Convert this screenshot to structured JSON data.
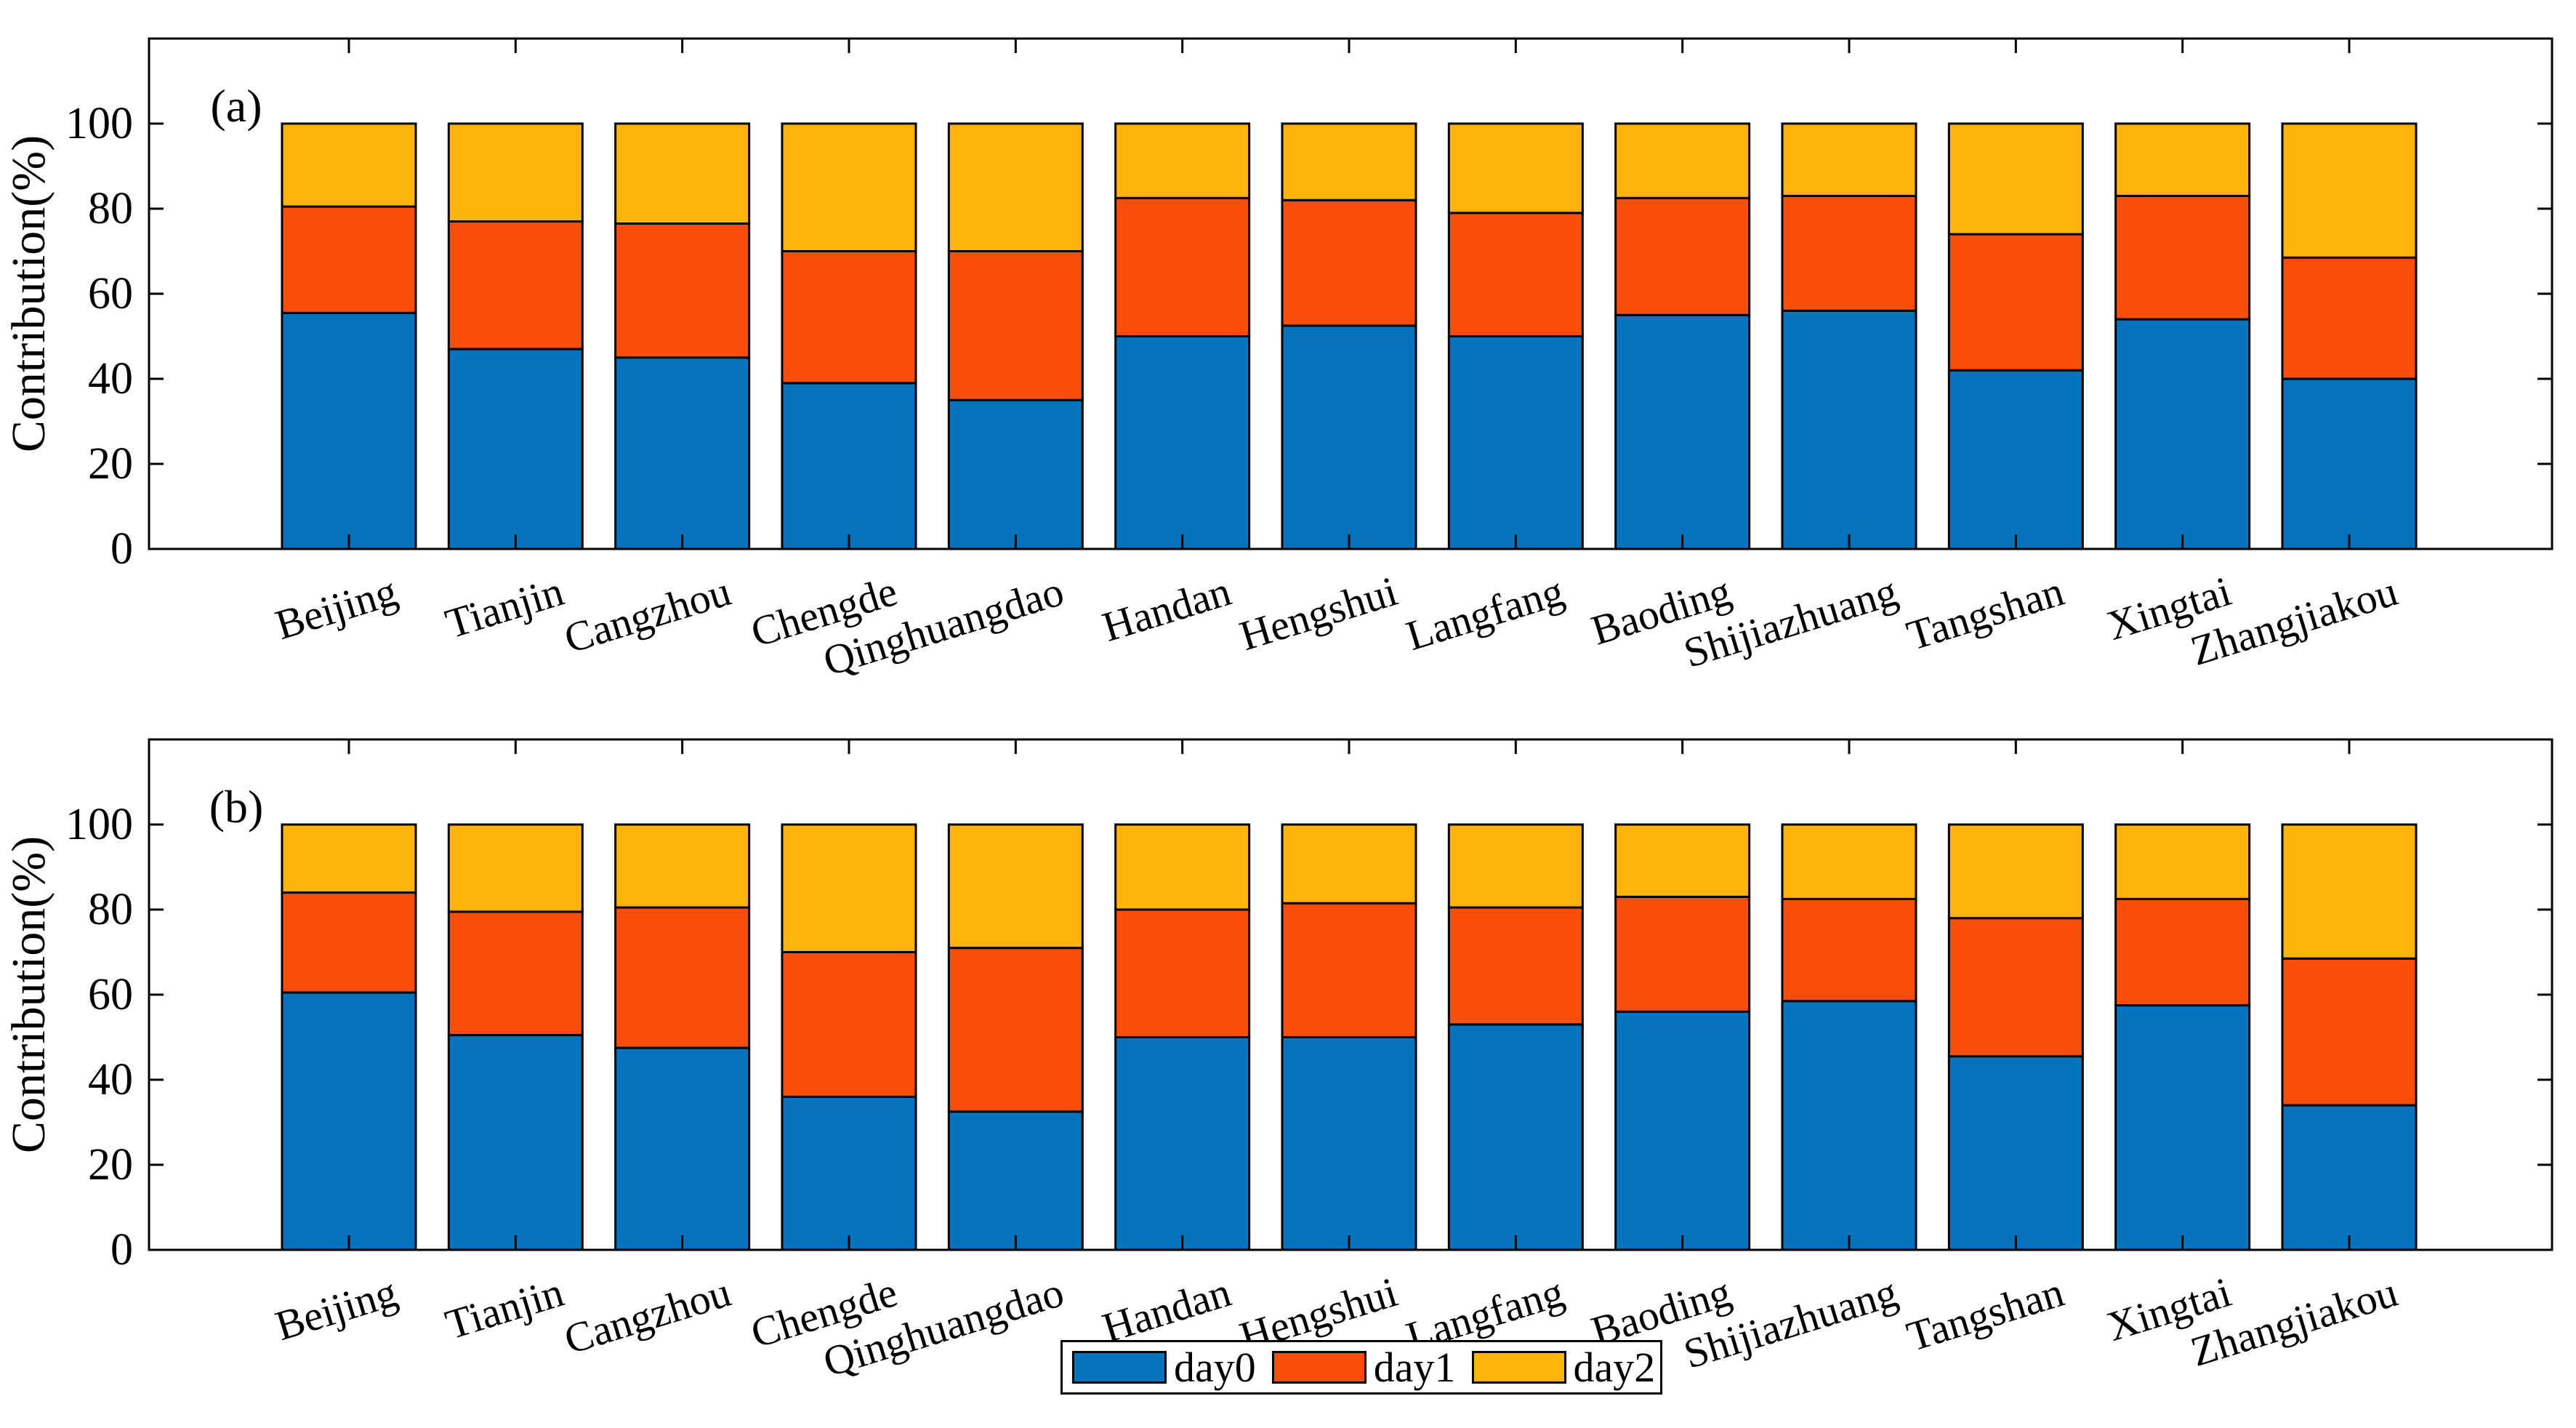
{
  "figure": {
    "panel_a_tag": "(a)",
    "panel_b_tag": "(b)",
    "ylabel": "Contribution(%)",
    "background_color": "#ffffff",
    "axis_color": "#000000",
    "legend": [
      {
        "label": "day0",
        "color": "#0673BE"
      },
      {
        "label": "day1",
        "color": "#F94E0B"
      },
      {
        "label": "day2",
        "color": "#FDB30C"
      }
    ]
  },
  "chart_data": [
    {
      "type": "bar",
      "stacked": true,
      "panel_label": "(a)",
      "title": "",
      "xlabel": "",
      "ylabel": "Contribution(%)",
      "ylim": [
        0,
        120
      ],
      "yticks": [
        0,
        20,
        40,
        60,
        80,
        100
      ],
      "grid": false,
      "legend_position": "below-figure",
      "categories": [
        "Beijing",
        "Tianjin",
        "Cangzhou",
        "Chengde",
        "Qinghuangdao",
        "Handan",
        "Hengshui",
        "Langfang",
        "Baoding",
        "Shijiazhuang",
        "Tangshan",
        "Xingtai",
        "Zhangjiakou"
      ],
      "series": [
        {
          "name": "day0",
          "color": "#0673BE",
          "values": [
            55.5,
            47,
            45,
            39,
            35,
            50,
            52.5,
            50,
            55,
            56,
            42,
            54,
            40
          ]
        },
        {
          "name": "day1",
          "color": "#F94E0B",
          "values": [
            25,
            30,
            31.5,
            31,
            35,
            32.5,
            29.5,
            29,
            27.5,
            27,
            32,
            29,
            28.5
          ]
        },
        {
          "name": "day2",
          "color": "#FDB30C",
          "values": [
            19.5,
            23,
            23.5,
            30,
            30,
            17.5,
            18,
            21,
            17.5,
            17,
            26,
            17,
            31.5
          ]
        }
      ]
    },
    {
      "type": "bar",
      "stacked": true,
      "panel_label": "(b)",
      "title": "",
      "xlabel": "",
      "ylabel": "Contribution(%)",
      "ylim": [
        0,
        120
      ],
      "yticks": [
        0,
        20,
        40,
        60,
        80,
        100
      ],
      "grid": false,
      "legend_position": "below-figure",
      "categories": [
        "Beijing",
        "Tianjin",
        "Cangzhou",
        "Chengde",
        "Qinghuangdao",
        "Handan",
        "Hengshui",
        "Langfang",
        "Baoding",
        "Shijiazhuang",
        "Tangshan",
        "Xingtai",
        "Zhangjiakou"
      ],
      "series": [
        {
          "name": "day0",
          "color": "#0673BE",
          "values": [
            60.5,
            50.5,
            47.5,
            36,
            32.5,
            50,
            50,
            53,
            56,
            58.5,
            45.5,
            57.5,
            34
          ]
        },
        {
          "name": "day1",
          "color": "#F94E0B",
          "values": [
            23.5,
            29,
            33,
            34,
            38.5,
            30,
            31.5,
            27.5,
            27,
            24,
            32.5,
            25,
            34.5
          ]
        },
        {
          "name": "day2",
          "color": "#FDB30C",
          "values": [
            16,
            20.5,
            19.5,
            30,
            29,
            20,
            18.5,
            19.5,
            17,
            17.5,
            22,
            17.5,
            31.5
          ]
        }
      ]
    }
  ]
}
